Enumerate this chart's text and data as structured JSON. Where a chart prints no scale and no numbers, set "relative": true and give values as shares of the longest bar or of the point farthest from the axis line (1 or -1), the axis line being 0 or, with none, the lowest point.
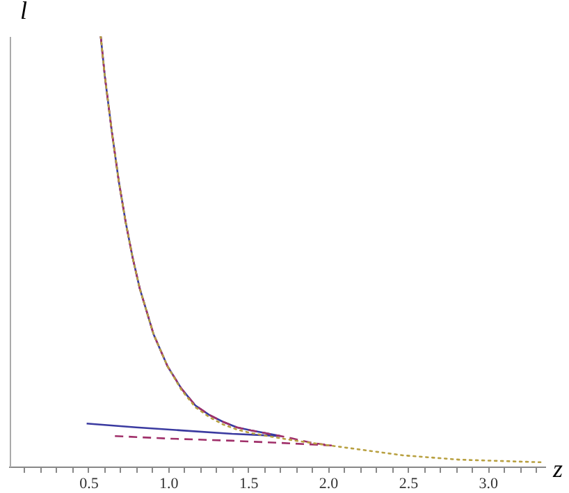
{
  "chart_data": {
    "type": "line",
    "xlabel": "z",
    "ylabel": "l",
    "relative": true,
    "xlim": [
      0,
      3.36
    ],
    "xticks": [
      {
        "value": 0.1,
        "label": null
      },
      {
        "value": 0.2,
        "label": null
      },
      {
        "value": 0.3,
        "label": null
      },
      {
        "value": 0.4,
        "label": null
      },
      {
        "value": 0.5,
        "label": "0.5"
      },
      {
        "value": 0.6,
        "label": null
      },
      {
        "value": 0.7,
        "label": null
      },
      {
        "value": 0.8,
        "label": null
      },
      {
        "value": 0.9,
        "label": null
      },
      {
        "value": 1,
        "label": "1.0"
      },
      {
        "value": 1.1,
        "label": null
      },
      {
        "value": 1.2,
        "label": null
      },
      {
        "value": 1.3,
        "label": null
      },
      {
        "value": 1.4,
        "label": null
      },
      {
        "value": 1.5,
        "label": "1.5"
      },
      {
        "value": 1.6,
        "label": null
      },
      {
        "value": 1.7,
        "label": null
      },
      {
        "value": 1.8,
        "label": null
      },
      {
        "value": 1.9,
        "label": null
      },
      {
        "value": 2,
        "label": "2.0"
      },
      {
        "value": 2.1,
        "label": null
      },
      {
        "value": 2.2,
        "label": null
      },
      {
        "value": 2.3,
        "label": null
      },
      {
        "value": 2.4,
        "label": null
      },
      {
        "value": 2.5,
        "label": "2.5"
      },
      {
        "value": 2.6,
        "label": null
      },
      {
        "value": 2.7,
        "label": null
      },
      {
        "value": 2.8,
        "label": null
      },
      {
        "value": 2.9,
        "label": null
      },
      {
        "value": 3,
        "label": "3.0"
      },
      {
        "value": 3.1,
        "label": null
      },
      {
        "value": 3.2,
        "label": null
      },
      {
        "value": 3.3,
        "label": null
      }
    ],
    "grid": false,
    "marker": "none",
    "series": [
      {
        "color": "#3a3aa0",
        "line_style": "solid",
        "x": [
          0.578,
          0.604,
          0.648,
          0.691,
          0.735,
          0.778,
          0.822,
          0.909,
          0.996,
          1.083,
          1.17,
          1.257,
          1.343,
          1.43,
          1.517,
          1.604,
          1.7,
          1.4,
          1.083,
          0.8,
          0.49
        ],
        "values": [
          1,
          0.906,
          0.777,
          0.663,
          0.566,
          0.485,
          0.414,
          0.307,
          0.233,
          0.181,
          0.142,
          0.12,
          0.104,
          0.091,
          0.084,
          0.078,
          0.071,
          0.076,
          0.084,
          0.091,
          0.1
        ]
      },
      {
        "color": "#a0306a",
        "line_style": "dashed",
        "x": [
          0.578,
          0.604,
          0.648,
          0.691,
          0.735,
          0.778,
          0.822,
          0.909,
          0.996,
          1.083,
          1.17,
          1.257,
          1.343,
          1.43,
          1.517,
          1.604,
          1.7,
          1.78,
          1.9,
          2.02,
          1.7,
          1.4,
          1.0,
          0.657
        ],
        "values": [
          1,
          0.906,
          0.777,
          0.663,
          0.566,
          0.485,
          0.414,
          0.307,
          0.233,
          0.181,
          0.142,
          0.12,
          0.104,
          0.091,
          0.084,
          0.078,
          0.071,
          0.065,
          0.055,
          0.049,
          0.055,
          0.06,
          0.065,
          0.071
        ]
      },
      {
        "color": "#b8a040",
        "line_style": "dotted",
        "x": [
          0.578,
          0.604,
          0.648,
          0.691,
          0.735,
          0.778,
          0.822,
          0.909,
          0.996,
          1.083,
          1.17,
          1.257,
          1.343,
          1.43,
          1.517,
          1.604,
          1.7,
          1.8,
          1.952,
          2.21,
          2.47,
          2.82,
          3.33
        ],
        "values": [
          1,
          0.906,
          0.777,
          0.663,
          0.566,
          0.485,
          0.414,
          0.307,
          0.233,
          0.178,
          0.138,
          0.115,
          0.098,
          0.086,
          0.078,
          0.072,
          0.066,
          0.06,
          0.052,
          0.039,
          0.026,
          0.016,
          0.01
        ]
      }
    ]
  }
}
